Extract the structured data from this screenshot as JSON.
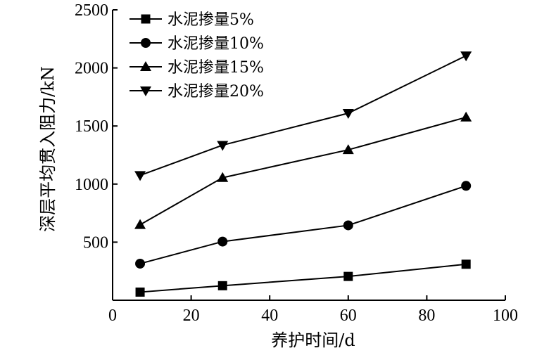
{
  "chart_data": {
    "type": "line",
    "xlabel": "养护时间/d",
    "ylabel": "深层平均贯入阻力/kN",
    "xlim": [
      0,
      100
    ],
    "ylim": [
      0,
      2500
    ],
    "xticks": [
      0,
      20,
      40,
      60,
      80,
      100
    ],
    "yticks": [
      500,
      1000,
      1500,
      2000,
      2500
    ],
    "grid": false,
    "legend_position": "top-left",
    "x": [
      7,
      28,
      60,
      90
    ],
    "series": [
      {
        "name": "水泥掺量5%",
        "marker": "square",
        "values": [
          70,
          125,
          205,
          310
        ]
      },
      {
        "name": "水泥掺量10%",
        "marker": "circle",
        "values": [
          315,
          505,
          645,
          985
        ]
      },
      {
        "name": "水泥掺量15%",
        "marker": "triangle-up",
        "values": [
          650,
          1055,
          1295,
          1575
        ]
      },
      {
        "name": "水泥掺量20%",
        "marker": "triangle-down",
        "values": [
          1075,
          1335,
          1610,
          2105
        ]
      }
    ],
    "colors": {
      "line": "#000000",
      "marker": "#000000"
    }
  }
}
